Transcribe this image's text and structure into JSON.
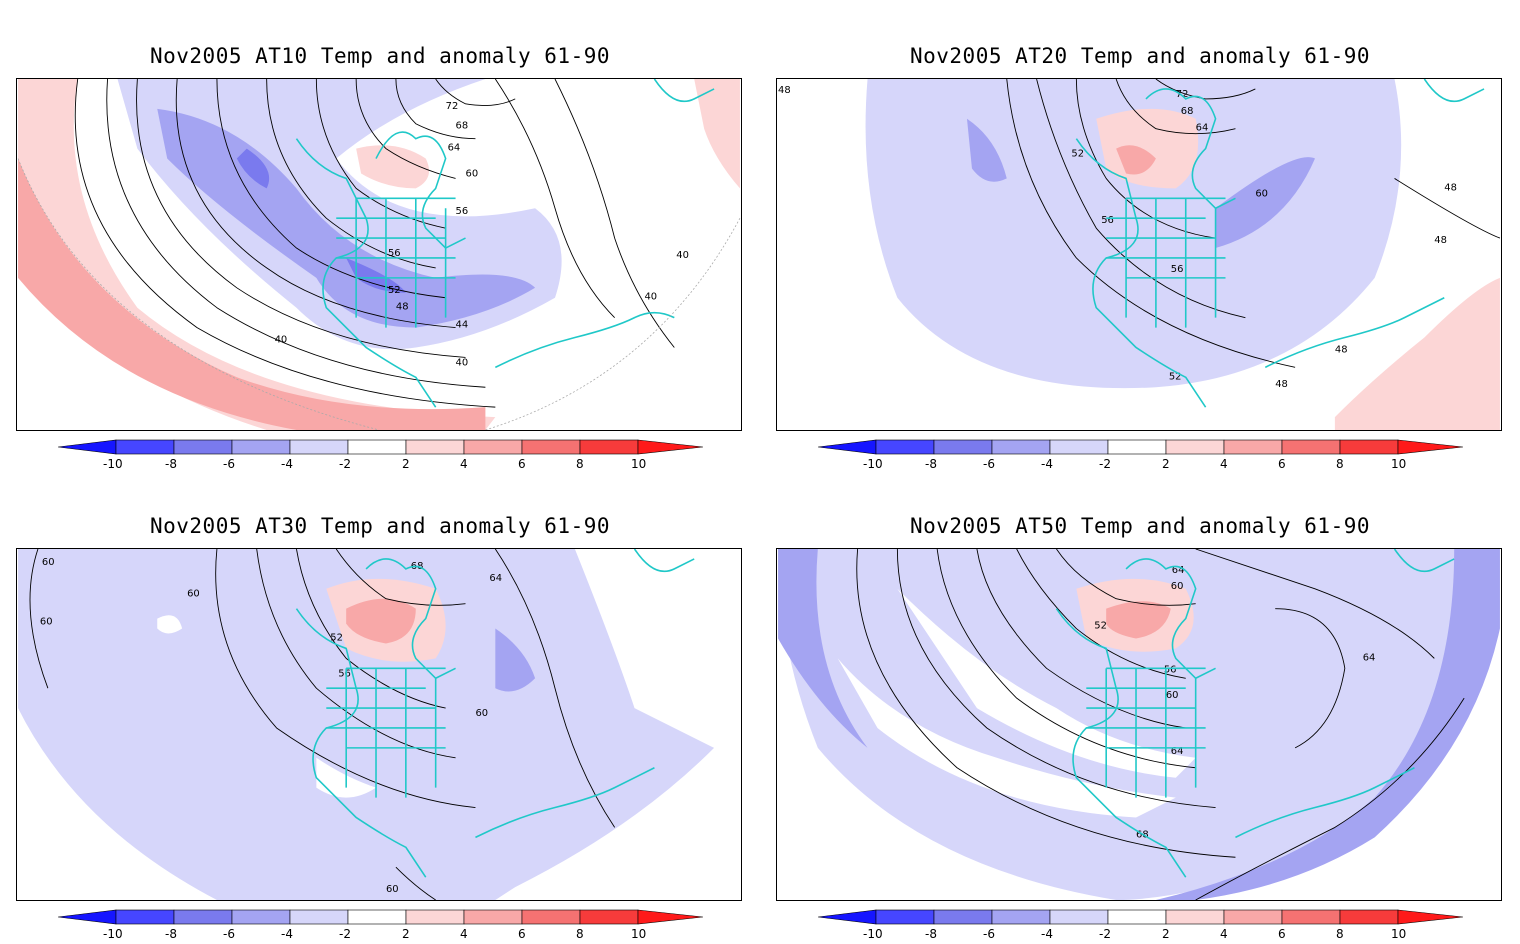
{
  "panels": [
    {
      "title": "Nov2005 AT10 Temp and anomaly 61-90",
      "contour_labels": [
        "72",
        "68",
        "64",
        "60",
        "56",
        "56",
        "52",
        "48",
        "44",
        "40",
        "40",
        "40",
        "40"
      ]
    },
    {
      "title": "Nov2005 AT20 Temp and anomaly 61-90",
      "contour_labels": [
        "72",
        "68",
        "64",
        "52",
        "60",
        "56",
        "56",
        "48",
        "48",
        "48",
        "48",
        "52",
        "48"
      ]
    },
    {
      "title": "Nov2005 AT30 Temp and anomaly 61-90",
      "contour_labels": [
        "68",
        "64",
        "60",
        "60",
        "60",
        "52",
        "56",
        "60",
        "60"
      ]
    },
    {
      "title": "Nov2005 AT50 Temp and anomaly 61-90",
      "contour_labels": [
        "64",
        "60",
        "52",
        "56",
        "60",
        "64",
        "64",
        "68"
      ]
    }
  ],
  "colorbar": {
    "ticks": [
      "-10",
      "-8",
      "-6",
      "-4",
      "-2",
      "2",
      "4",
      "6",
      "8",
      "10"
    ],
    "colors": [
      "#1515ff",
      "#4646ff",
      "#7a7aee",
      "#a4a4f2",
      "#d6d6fa",
      "#ffffff",
      "#fcd6d6",
      "#f8a8a8",
      "#f57272",
      "#f73b3b",
      "#ff1a1a"
    ]
  },
  "colors": {
    "coast": "#20c8c8",
    "contour": "#000000"
  }
}
